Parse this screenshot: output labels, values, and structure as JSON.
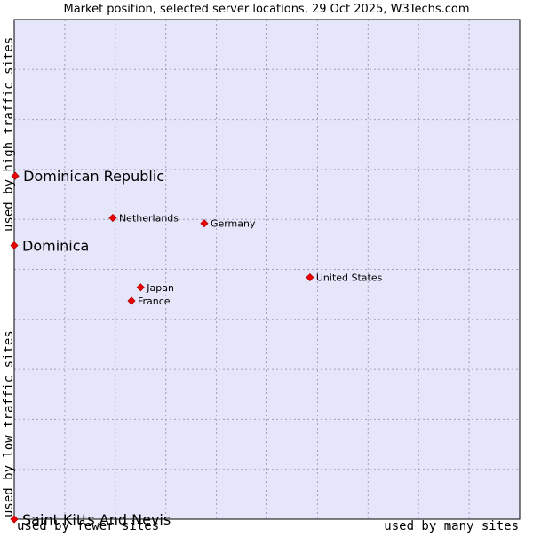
{
  "chart_data": {
    "type": "scatter",
    "title": "Market position, selected server locations, 29 Oct 2025, W3Techs.com",
    "x_axis": {
      "low_label": "used by fewer sites",
      "high_label": "used by many sites",
      "range": [
        0,
        100
      ]
    },
    "y_axis": {
      "low_label": "used by low traffic sites",
      "high_label": "used by high traffic sites",
      "range": [
        0,
        100
      ]
    },
    "grid": true,
    "colors": {
      "plot_bg": "#e6e6fa",
      "grid": "#a0a0c0",
      "point": "#ee0000",
      "point_edge": "#aa0000"
    },
    "points": [
      {
        "label": "Dominican Republic",
        "x": 0.2,
        "y": 68.7,
        "highlight": true
      },
      {
        "label": "Dominica",
        "x": 0.0,
        "y": 54.8,
        "highlight": true
      },
      {
        "label": "Saint Kitts And Nevis",
        "x": 0.0,
        "y": 0.0,
        "highlight": true
      },
      {
        "label": "Netherlands",
        "x": 19.5,
        "y": 60.3,
        "highlight": false
      },
      {
        "label": "Germany",
        "x": 37.6,
        "y": 59.2,
        "highlight": false
      },
      {
        "label": "United States",
        "x": 58.5,
        "y": 48.4,
        "highlight": false
      },
      {
        "label": "Japan",
        "x": 25.0,
        "y": 46.4,
        "highlight": false
      },
      {
        "label": "France",
        "x": 23.2,
        "y": 43.7,
        "highlight": false
      }
    ]
  }
}
